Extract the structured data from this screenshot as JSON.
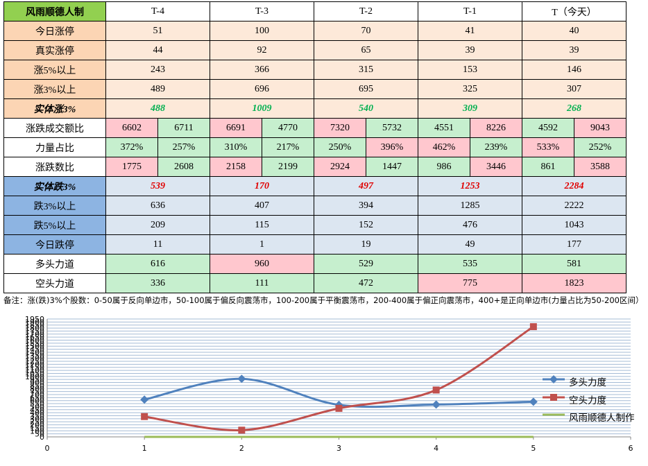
{
  "table": {
    "title": "风雨顺德人制",
    "headers": [
      "T-4",
      "T-3",
      "T-2",
      "T-1",
      "T（今天）"
    ],
    "rows_up": [
      {
        "label": "今日涨停",
        "values": [
          "51",
          "100",
          "70",
          "41",
          "40"
        ]
      },
      {
        "label": "真实涨停",
        "values": [
          "44",
          "92",
          "65",
          "39",
          "39"
        ]
      },
      {
        "label": "涨5%以上",
        "values": [
          "243",
          "366",
          "315",
          "153",
          "146"
        ]
      },
      {
        "label": "涨3%以上",
        "values": [
          "489",
          "696",
          "695",
          "325",
          "307"
        ]
      }
    ],
    "row_solid_up": {
      "label": "实体涨3%",
      "values": [
        "488",
        "1009",
        "540",
        "309",
        "268"
      ]
    },
    "row_turnover": {
      "label": "涨跌成交额比",
      "pairs": [
        [
          "6602",
          "6711"
        ],
        [
          "6691",
          "4770"
        ],
        [
          "7320",
          "5732"
        ],
        [
          "4551",
          "8226"
        ],
        [
          "4592",
          "9043"
        ]
      ],
      "colors": [
        [
          "pink",
          "green"
        ],
        [
          "pink",
          "green"
        ],
        [
          "pink",
          "green"
        ],
        [
          "green",
          "pink"
        ],
        [
          "green",
          "pink"
        ]
      ]
    },
    "row_power": {
      "label": "力量占比",
      "pairs": [
        [
          "372%",
          "257%"
        ],
        [
          "310%",
          "217%"
        ],
        [
          "250%",
          "396%"
        ],
        [
          "462%",
          "239%"
        ],
        [
          "533%",
          "252%"
        ]
      ],
      "colors": [
        [
          "green",
          "green"
        ],
        [
          "green",
          "green"
        ],
        [
          "green",
          "pink"
        ],
        [
          "pink",
          "green"
        ],
        [
          "pink",
          "green"
        ]
      ]
    },
    "row_count": {
      "label": "涨跌数比",
      "pairs": [
        [
          "1775",
          "2608"
        ],
        [
          "2158",
          "2199"
        ],
        [
          "2924",
          "1447"
        ],
        [
          "986",
          "3446"
        ],
        [
          "861",
          "3588"
        ]
      ],
      "colors": [
        [
          "pink",
          "green"
        ],
        [
          "pink",
          "green"
        ],
        [
          "pink",
          "green"
        ],
        [
          "green",
          "pink"
        ],
        [
          "green",
          "pink"
        ]
      ]
    },
    "row_solid_down": {
      "label": "实体跌3%",
      "values": [
        "539",
        "170",
        "497",
        "1253",
        "2284"
      ]
    },
    "rows_down": [
      {
        "label": "跌3%以上",
        "values": [
          "636",
          "407",
          "394",
          "1285",
          "2222"
        ]
      },
      {
        "label": "跌5%以上",
        "values": [
          "209",
          "115",
          "152",
          "476",
          "1043"
        ]
      },
      {
        "label": "今日跌停",
        "values": [
          "11",
          "1",
          "19",
          "49",
          "177"
        ]
      }
    ],
    "row_bull": {
      "label": "多头力道",
      "values": [
        "616",
        "960",
        "529",
        "535",
        "581"
      ],
      "colors": [
        "green",
        "pink",
        "green",
        "green",
        "green"
      ]
    },
    "row_bear": {
      "label": "空头力道",
      "values": [
        "336",
        "111",
        "472",
        "775",
        "1823"
      ],
      "colors": [
        "green",
        "green",
        "green",
        "pink",
        "pink"
      ]
    }
  },
  "note": "备注：涨(跌)3%个股数：0-50属于反向单边市，50-100属于偏反向震荡市，100-200属于平衡震荡市，200-400属于偏正向震荡市，400+是正向单边市(力量占比为50-200区间）",
  "colors": {
    "bull": "#4f81bd",
    "bear": "#c0504d",
    "third": "#9bbb59",
    "green_text": "#00b050",
    "red_text": "#e00000"
  },
  "chart_data": {
    "type": "line",
    "x": [
      1,
      2,
      3,
      4,
      5
    ],
    "series": [
      {
        "name": "多头力度",
        "values": [
          616,
          960,
          529,
          535,
          581
        ]
      },
      {
        "name": "空头力度",
        "values": [
          336,
          111,
          472,
          775,
          1823
        ]
      },
      {
        "name": "风雨顺德人制作",
        "values": [
          0,
          0,
          0,
          0,
          0
        ]
      }
    ],
    "xlim": [
      0,
      6
    ],
    "xticks": [
      "0",
      "1",
      "2",
      "3",
      "4",
      "5",
      "6"
    ],
    "ylim": [
      0,
      1950
    ],
    "ystep": 50,
    "grid": true,
    "legend": "right"
  }
}
